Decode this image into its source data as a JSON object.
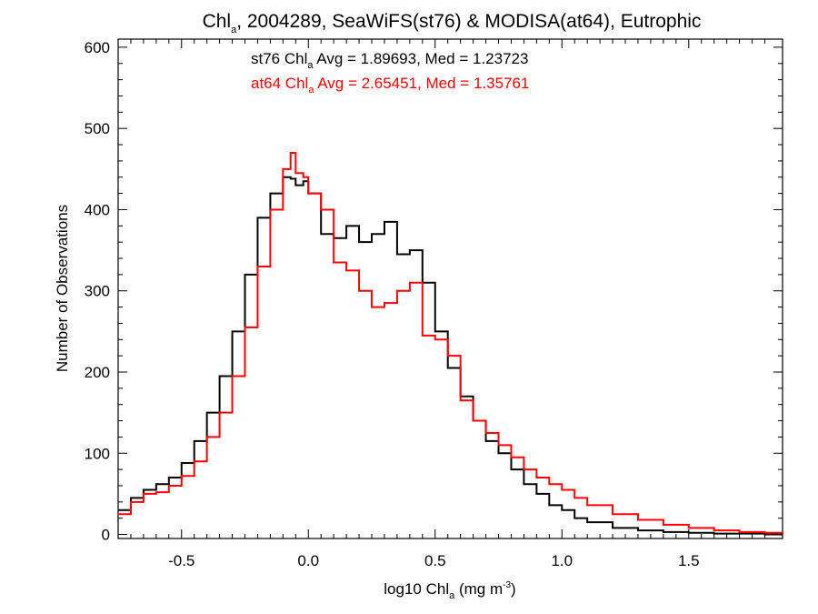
{
  "chart_data": {
    "type": "line",
    "title": {
      "prefix": "Chl",
      "subscript": "a",
      "suffix": ", 2004289, SeaWiFS(st76) & MODISA(at64), Eutrophic"
    },
    "xlabel": {
      "prefix": "log10 Chl",
      "subscript": "a",
      "units": " (mg m",
      "superscript": "-3",
      "close": ")"
    },
    "ylabel": "Number of Observations",
    "xlim": [
      -0.75,
      1.87
    ],
    "ylim": [
      -5,
      610
    ],
    "x_ticks": {
      "values": [
        -0.5,
        0.0,
        0.5,
        1.0,
        1.5
      ],
      "labels": [
        "-0.5",
        "0.0",
        "0.5",
        "1.0",
        "1.5"
      ]
    },
    "y_ticks": {
      "values": [
        0,
        100,
        200,
        300,
        400,
        500,
        600
      ],
      "labels": [
        "0",
        "100",
        "200",
        "300",
        "400",
        "500",
        "600"
      ]
    },
    "grid": false,
    "annotations": [
      {
        "prefix": "st76 Chl",
        "subscript": "a",
        "suffix": " Avg = 1.89693, Med = 1.23723",
        "color": "#000000"
      },
      {
        "prefix": "at64 Chl",
        "subscript": "a",
        "suffix": " Avg = 2.65451, Med = 1.35761",
        "color": "#ff0000"
      }
    ],
    "series": [
      {
        "color": "#000000",
        "x": [
          -0.75,
          -0.7,
          -0.65,
          -0.6,
          -0.55,
          -0.5,
          -0.45,
          -0.4,
          -0.35,
          -0.3,
          -0.25,
          -0.2,
          -0.15,
          -0.1,
          -0.07,
          -0.05,
          -0.02,
          0.0,
          0.05,
          0.1,
          0.15,
          0.2,
          0.25,
          0.3,
          0.35,
          0.4,
          0.45,
          0.5,
          0.55,
          0.6,
          0.65,
          0.7,
          0.75,
          0.8,
          0.85,
          0.9,
          0.95,
          1.0,
          1.05,
          1.1,
          1.2,
          1.3,
          1.4,
          1.5,
          1.6,
          1.7,
          1.8,
          1.87
        ],
        "y": [
          30,
          45,
          55,
          62,
          70,
          88,
          115,
          150,
          195,
          250,
          320,
          390,
          420,
          440,
          438,
          430,
          435,
          420,
          370,
          365,
          380,
          360,
          370,
          385,
          345,
          350,
          310,
          250,
          205,
          170,
          140,
          115,
          100,
          80,
          62,
          50,
          36,
          30,
          20,
          15,
          8,
          5,
          3,
          2,
          1,
          1,
          0,
          0
        ]
      },
      {
        "color": "#ff0000",
        "x": [
          -0.75,
          -0.7,
          -0.65,
          -0.6,
          -0.55,
          -0.5,
          -0.45,
          -0.4,
          -0.35,
          -0.3,
          -0.25,
          -0.2,
          -0.15,
          -0.1,
          -0.07,
          -0.05,
          -0.02,
          0.0,
          0.05,
          0.1,
          0.15,
          0.2,
          0.25,
          0.3,
          0.35,
          0.4,
          0.45,
          0.5,
          0.55,
          0.6,
          0.65,
          0.7,
          0.75,
          0.8,
          0.85,
          0.9,
          0.95,
          1.0,
          1.05,
          1.1,
          1.2,
          1.3,
          1.4,
          1.5,
          1.6,
          1.7,
          1.8,
          1.87
        ],
        "y": [
          25,
          40,
          50,
          52,
          60,
          72,
          90,
          120,
          150,
          195,
          255,
          330,
          400,
          450,
          470,
          445,
          440,
          420,
          400,
          335,
          325,
          300,
          280,
          285,
          300,
          310,
          245,
          240,
          220,
          165,
          140,
          125,
          110,
          95,
          80,
          70,
          62,
          55,
          45,
          36,
          25,
          18,
          12,
          8,
          5,
          3,
          2,
          1
        ]
      }
    ]
  }
}
